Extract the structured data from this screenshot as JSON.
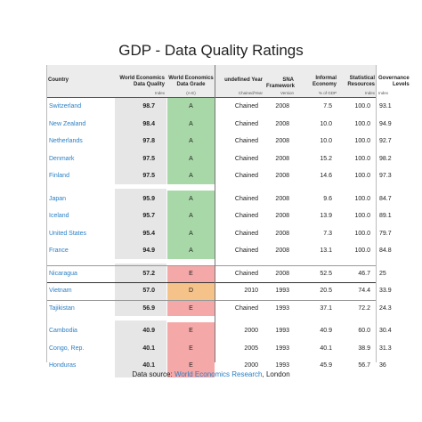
{
  "title": "GDP - Data Quality Ratings",
  "source": {
    "prefix": "Data source: ",
    "link": "World Economics Research",
    "suffix": ", London"
  },
  "colors": {
    "A": "#a8d8a8",
    "D": "#f5c28a",
    "E": "#f5a8a8",
    "quality_bg": "#e6e6e6",
    "link": "#2a7fc4"
  },
  "chart_data": {
    "type": "table",
    "title": "GDP - Data Quality Ratings",
    "columns": [
      {
        "key": "country",
        "label": "Country",
        "sub": ""
      },
      {
        "key": "quality",
        "label": "World Economics Data Quality",
        "sub": "Index"
      },
      {
        "key": "grade",
        "label": "World Economics Data Grade",
        "sub": "(A-E)"
      },
      {
        "key": "year",
        "label": "undefined Year",
        "sub": "Chained/Year"
      },
      {
        "key": "sna",
        "label": "SNA Framework",
        "sub": "Version"
      },
      {
        "key": "informal",
        "label": "Informal Economy",
        "sub": "% of GDP"
      },
      {
        "key": "stat",
        "label": "Statistical Resources",
        "sub": "Index"
      },
      {
        "key": "gov",
        "label": "Governance Levels",
        "sub": "Index"
      }
    ],
    "groups": [
      [
        {
          "country": "Switzerland",
          "quality": "98.7",
          "grade": "A",
          "year": "Chained",
          "sna": "2008",
          "informal": "7.5",
          "stat": "100.0",
          "gov": "93.1"
        },
        {
          "country": "New Zealand",
          "quality": "98.4",
          "grade": "A",
          "year": "Chained",
          "sna": "2008",
          "informal": "10.0",
          "stat": "100.0",
          "gov": "94.9"
        },
        {
          "country": "Netherlands",
          "quality": "97.8",
          "grade": "A",
          "year": "Chained",
          "sna": "2008",
          "informal": "10.0",
          "stat": "100.0",
          "gov": "92.7"
        },
        {
          "country": "Denmark",
          "quality": "97.5",
          "grade": "A",
          "year": "Chained",
          "sna": "2008",
          "informal": "15.2",
          "stat": "100.0",
          "gov": "98.2"
        },
        {
          "country": "Finland",
          "quality": "97.5",
          "grade": "A",
          "year": "Chained",
          "sna": "2008",
          "informal": "14.6",
          "stat": "100.0",
          "gov": "97.3"
        }
      ],
      [
        {
          "country": "Japan",
          "quality": "95.9",
          "grade": "A",
          "year": "Chained",
          "sna": "2008",
          "informal": "9.6",
          "stat": "100.0",
          "gov": "84.7"
        },
        {
          "country": "Iceland",
          "quality": "95.7",
          "grade": "A",
          "year": "Chained",
          "sna": "2008",
          "informal": "13.9",
          "stat": "100.0",
          "gov": "89.1"
        },
        {
          "country": "United States",
          "quality": "95.4",
          "grade": "A",
          "year": "Chained",
          "sna": "2008",
          "informal": "7.3",
          "stat": "100.0",
          "gov": "79.7"
        },
        {
          "country": "France",
          "quality": "94.9",
          "grade": "A",
          "year": "Chained",
          "sna": "2008",
          "informal": "13.1",
          "stat": "100.0",
          "gov": "84.8"
        }
      ],
      [
        {
          "country": "Nicaragua",
          "quality": "57.2",
          "grade": "E",
          "year": "Chained",
          "sna": "2008",
          "informal": "52.5",
          "stat": "46.7",
          "gov": "25"
        },
        {
          "country": "Vietnam",
          "quality": "57.0",
          "grade": "D",
          "year": "2010",
          "sna": "1993",
          "informal": "20.5",
          "stat": "74.4",
          "gov": "33.9"
        },
        {
          "country": "Tajikistan",
          "quality": "56.9",
          "grade": "E",
          "year": "Chained",
          "sna": "1993",
          "informal": "37.1",
          "stat": "72.2",
          "gov": "24.3"
        }
      ],
      [
        {
          "country": "Cambodia",
          "quality": "40.9",
          "grade": "E",
          "year": "2000",
          "sna": "1993",
          "informal": "40.9",
          "stat": "60.0",
          "gov": "30.4"
        },
        {
          "country": "Congo, Rep.",
          "quality": "40.1",
          "grade": "E",
          "year": "2005",
          "sna": "1993",
          "informal": "40.1",
          "stat": "38.9",
          "gov": "31.3"
        },
        {
          "country": "Honduras",
          "quality": "40.1",
          "grade": "E",
          "year": "2000",
          "sna": "1993",
          "informal": "45.9",
          "stat": "56.7",
          "gov": "36"
        }
      ]
    ]
  }
}
